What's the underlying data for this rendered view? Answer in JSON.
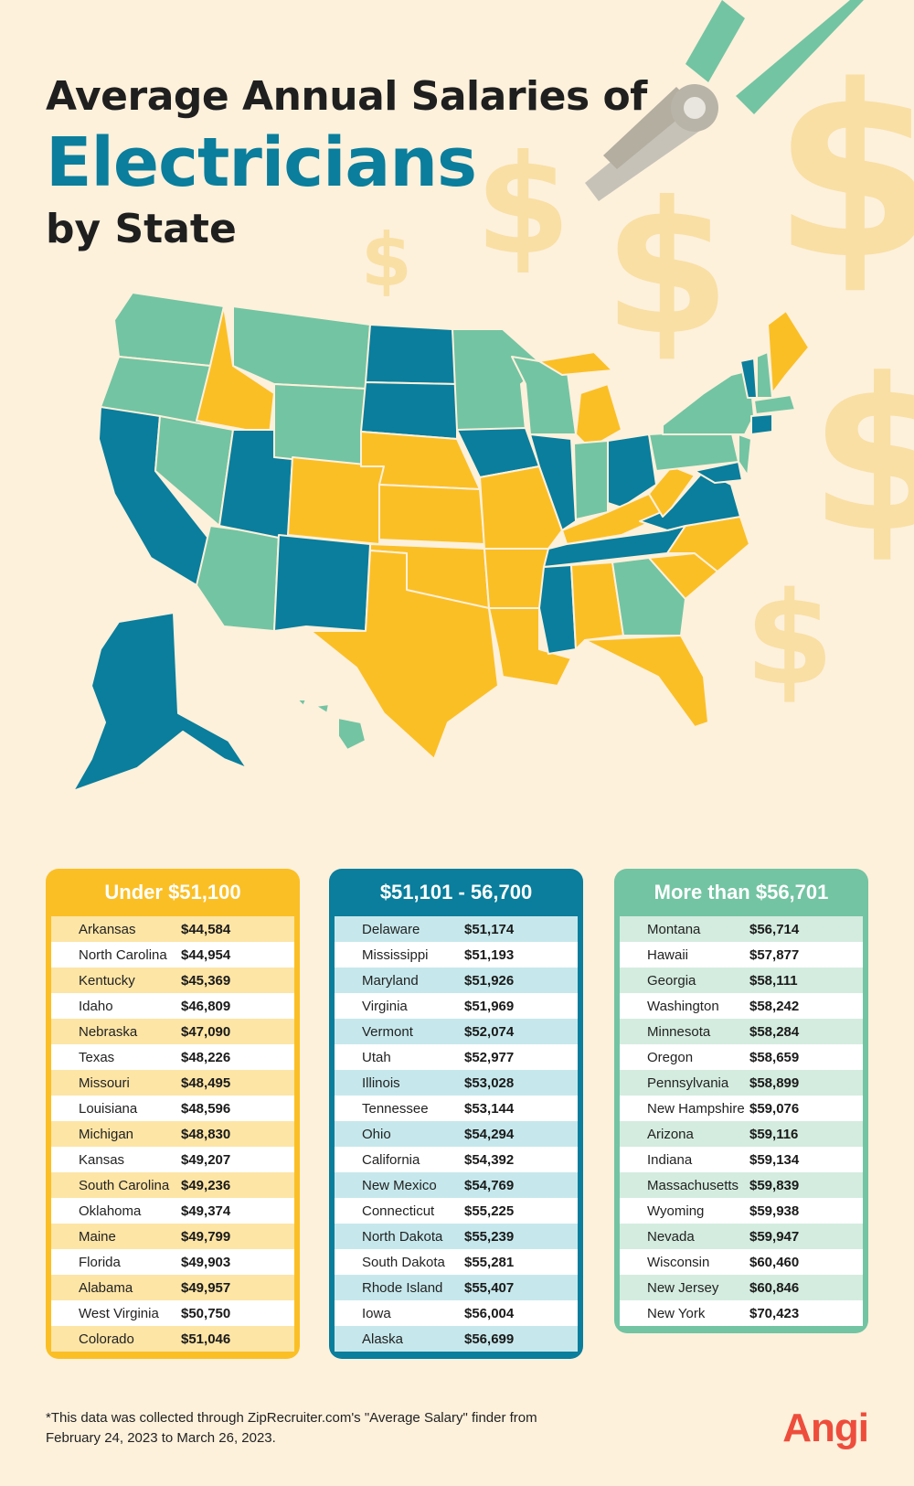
{
  "title": {
    "line1": "Average Annual Salaries of",
    "line2": "Electricians",
    "line3": "by State"
  },
  "colors": {
    "low": "#fbbf26",
    "mid": "#0a7e9c",
    "high": "#73c4a2",
    "background": "#fdf1dc"
  },
  "icons": [
    "dollar-sign-icon",
    "pliers-icon",
    "us-map-icon"
  ],
  "tables": {
    "low": {
      "header": "Under $51,100",
      "rows": [
        {
          "state": "Arkansas",
          "salary": "$44,584"
        },
        {
          "state": "North Carolina",
          "salary": "$44,954"
        },
        {
          "state": "Kentucky",
          "salary": "$45,369"
        },
        {
          "state": "Idaho",
          "salary": "$46,809"
        },
        {
          "state": "Nebraska",
          "salary": "$47,090"
        },
        {
          "state": "Texas",
          "salary": "$48,226"
        },
        {
          "state": "Missouri",
          "salary": "$48,495"
        },
        {
          "state": "Louisiana",
          "salary": "$48,596"
        },
        {
          "state": "Michigan",
          "salary": "$48,830"
        },
        {
          "state": "Kansas",
          "salary": "$49,207"
        },
        {
          "state": "South Carolina",
          "salary": "$49,236"
        },
        {
          "state": "Oklahoma",
          "salary": "$49,374"
        },
        {
          "state": "Maine",
          "salary": "$49,799"
        },
        {
          "state": "Florida",
          "salary": "$49,903"
        },
        {
          "state": "Alabama",
          "salary": "$49,957"
        },
        {
          "state": "West Virginia",
          "salary": "$50,750"
        },
        {
          "state": "Colorado",
          "salary": "$51,046"
        }
      ]
    },
    "mid": {
      "header": "$51,101 - 56,700",
      "rows": [
        {
          "state": "Delaware",
          "salary": "$51,174"
        },
        {
          "state": "Mississippi",
          "salary": "$51,193"
        },
        {
          "state": "Maryland",
          "salary": "$51,926"
        },
        {
          "state": "Virginia",
          "salary": "$51,969"
        },
        {
          "state": "Vermont",
          "salary": "$52,074"
        },
        {
          "state": "Utah",
          "salary": "$52,977"
        },
        {
          "state": "Illinois",
          "salary": "$53,028"
        },
        {
          "state": "Tennessee",
          "salary": "$53,144"
        },
        {
          "state": "Ohio",
          "salary": "$54,294"
        },
        {
          "state": "California",
          "salary": "$54,392"
        },
        {
          "state": "New Mexico",
          "salary": "$54,769"
        },
        {
          "state": "Connecticut",
          "salary": "$55,225"
        },
        {
          "state": "North Dakota",
          "salary": "$55,239"
        },
        {
          "state": "South Dakota",
          "salary": "$55,281"
        },
        {
          "state": "Rhode Island",
          "salary": "$55,407"
        },
        {
          "state": "Iowa",
          "salary": "$56,004"
        },
        {
          "state": "Alaska",
          "salary": "$56,699"
        }
      ]
    },
    "high": {
      "header": "More than $56,701",
      "rows": [
        {
          "state": "Montana",
          "salary": "$56,714"
        },
        {
          "state": "Hawaii",
          "salary": "$57,877"
        },
        {
          "state": "Georgia",
          "salary": "$58,111"
        },
        {
          "state": "Washington",
          "salary": "$58,242"
        },
        {
          "state": "Minnesota",
          "salary": "$58,284"
        },
        {
          "state": "Oregon",
          "salary": "$58,659"
        },
        {
          "state": "Pennsylvania",
          "salary": "$58,899"
        },
        {
          "state": "New Hampshire",
          "salary": "$59,076"
        },
        {
          "state": "Arizona",
          "salary": "$59,116"
        },
        {
          "state": "Indiana",
          "salary": "$59,134"
        },
        {
          "state": "Massachusetts",
          "salary": "$59,839"
        },
        {
          "state": "Wyoming",
          "salary": "$59,938"
        },
        {
          "state": "Nevada",
          "salary": "$59,947"
        },
        {
          "state": "Wisconsin",
          "salary": "$60,460"
        },
        {
          "state": "New Jersey",
          "salary": "$60,846"
        },
        {
          "state": "New York",
          "salary": "$70,423"
        }
      ]
    }
  },
  "footnote": "*This data was collected through ZipRecruiter.com's \"Average Salary\" finder from February 24, 2023 to March 26, 2023.",
  "logo": "Angi"
}
